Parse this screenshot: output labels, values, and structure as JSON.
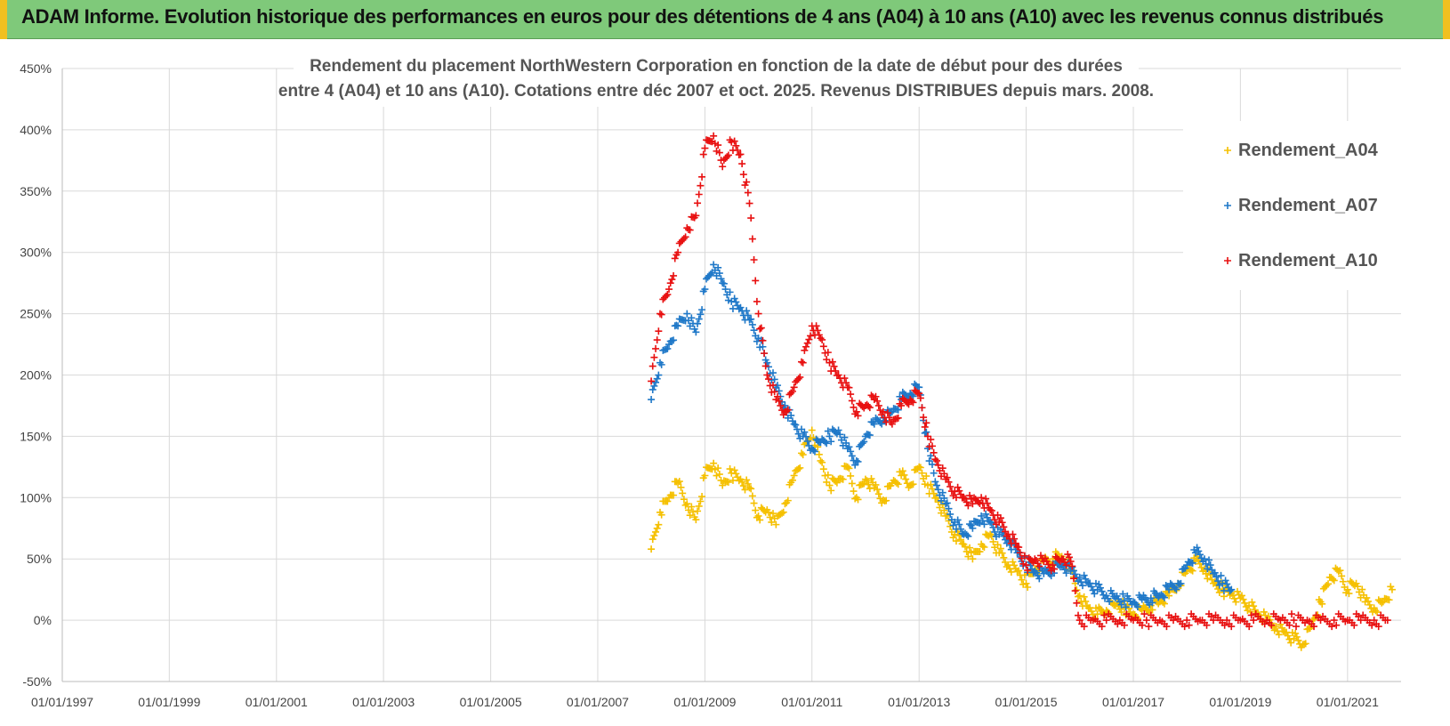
{
  "header": {
    "title": "ADAM Informe. Evolution historique des performances en euros pour des détentions de 4 ans (A04) à 10 ans (A10) avec les revenus connus distribués"
  },
  "colors": {
    "A04": "#f5c000",
    "A07": "#1f78c8",
    "A10": "#e81010",
    "banner": "#7fc97a",
    "grid": "#d9d9d9"
  },
  "chart_data": {
    "type": "scatter",
    "title_lines": [
      "Rendement du placement NorthWestern Corporation en fonction de la date de début pour des durées",
      "entre 4 (A04) et 10 ans (A10). Cotations entre déc 2007 et oct. 2025. Revenus DISTRIBUES depuis mars. 2008."
    ],
    "xlabel": "",
    "ylabel": "",
    "xlim": [
      "1997-01-01",
      "2022-01-01"
    ],
    "ylim": [
      -50,
      450
    ],
    "y_ticks": [
      "-50%",
      "0%",
      "50%",
      "100%",
      "150%",
      "200%",
      "250%",
      "300%",
      "350%",
      "400%",
      "450%"
    ],
    "x_ticks": [
      "01/01/1997",
      "01/01/1999",
      "01/01/2001",
      "01/01/2003",
      "01/01/2005",
      "01/01/2007",
      "01/01/2009",
      "01/01/2011",
      "01/01/2013",
      "01/01/2015",
      "01/01/2017",
      "01/01/2019",
      "01/01/2021"
    ],
    "grid": true,
    "legend_position": "top-right",
    "series": [
      {
        "name": "Rendement_A04",
        "marker": "+",
        "x": [
          "2008-01-01",
          "2008-03-01",
          "2008-05-01",
          "2008-07-01",
          "2008-09-01",
          "2008-11-01",
          "2009-01-01",
          "2009-03-01",
          "2009-05-01",
          "2009-07-01",
          "2009-09-01",
          "2009-11-01",
          "2010-01-01",
          "2010-03-01",
          "2010-05-01",
          "2010-07-01",
          "2010-09-01",
          "2010-11-01",
          "2011-01-01",
          "2011-03-01",
          "2011-05-01",
          "2011-07-01",
          "2011-09-01",
          "2011-11-01",
          "2012-01-01",
          "2012-03-01",
          "2012-05-01",
          "2012-07-01",
          "2012-09-01",
          "2012-11-01",
          "2013-01-01",
          "2013-03-01",
          "2013-05-01",
          "2013-07-01",
          "2013-09-01",
          "2013-11-01",
          "2014-01-01",
          "2014-03-01",
          "2014-05-01",
          "2014-07-01",
          "2014-09-01",
          "2014-11-01",
          "2015-01-01",
          "2015-03-01",
          "2015-05-01",
          "2015-07-01",
          "2015-09-01",
          "2015-11-01",
          "2016-01-01",
          "2016-03-01",
          "2016-05-01",
          "2016-07-01",
          "2016-09-01",
          "2016-11-01",
          "2017-01-01",
          "2017-03-01",
          "2017-05-01",
          "2017-07-01",
          "2017-09-01",
          "2017-11-01",
          "2018-01-01",
          "2018-03-01",
          "2018-05-01",
          "2018-07-01",
          "2018-09-01",
          "2018-11-01",
          "2019-01-01",
          "2019-03-01",
          "2019-05-01",
          "2019-07-01",
          "2019-09-01",
          "2019-11-01",
          "2020-01-01",
          "2020-03-01",
          "2020-05-01",
          "2020-07-01",
          "2020-09-01",
          "2020-11-01",
          "2021-01-01",
          "2021-03-01",
          "2021-05-01",
          "2021-07-01",
          "2021-09-01",
          "2021-11-01"
        ],
        "y": [
          58,
          88,
          100,
          112,
          95,
          82,
          118,
          128,
          110,
          120,
          115,
          108,
          85,
          90,
          78,
          95,
          118,
          135,
          155,
          130,
          110,
          115,
          125,
          100,
          115,
          108,
          98,
          112,
          118,
          110,
          125,
          110,
          100,
          85,
          70,
          62,
          50,
          62,
          70,
          55,
          45,
          40,
          30,
          42,
          48,
          50,
          52,
          40,
          20,
          10,
          5,
          8,
          12,
          10,
          5,
          8,
          12,
          15,
          20,
          30,
          40,
          48,
          42,
          30,
          25,
          22,
          18,
          12,
          5,
          0,
          -5,
          -10,
          -15,
          -20,
          -5,
          15,
          35,
          40,
          25,
          30,
          15,
          10,
          15,
          25
        ]
      },
      {
        "name": "Rendement_A07",
        "marker": "+",
        "x": [
          "2008-01-01",
          "2008-03-01",
          "2008-05-01",
          "2008-07-01",
          "2008-09-01",
          "2008-11-01",
          "2009-01-01",
          "2009-03-01",
          "2009-05-01",
          "2009-07-01",
          "2009-09-01",
          "2009-11-01",
          "2010-01-01",
          "2010-03-01",
          "2010-05-01",
          "2010-07-01",
          "2010-09-01",
          "2010-11-01",
          "2011-01-01",
          "2011-03-01",
          "2011-05-01",
          "2011-07-01",
          "2011-09-01",
          "2011-11-01",
          "2012-01-01",
          "2012-03-01",
          "2012-05-01",
          "2012-07-01",
          "2012-09-01",
          "2012-11-01",
          "2013-01-01",
          "2013-03-01",
          "2013-05-01",
          "2013-07-01",
          "2013-09-01",
          "2013-11-01",
          "2014-01-01",
          "2014-03-01",
          "2014-05-01",
          "2014-07-01",
          "2014-09-01",
          "2014-11-01",
          "2015-01-01",
          "2015-03-01",
          "2015-05-01",
          "2015-07-01",
          "2015-09-01",
          "2015-11-01",
          "2016-01-01",
          "2016-03-01",
          "2016-05-01",
          "2016-07-01",
          "2016-09-01",
          "2016-11-01",
          "2017-01-01",
          "2017-03-01",
          "2017-05-01",
          "2017-07-01",
          "2017-09-01",
          "2017-11-01",
          "2018-01-01",
          "2018-03-01",
          "2018-05-01",
          "2018-07-01",
          "2018-09-01",
          "2018-11-01"
        ],
        "y": [
          180,
          210,
          225,
          240,
          250,
          235,
          270,
          290,
          275,
          260,
          255,
          245,
          230,
          210,
          190,
          175,
          160,
          150,
          140,
          145,
          150,
          155,
          140,
          130,
          150,
          160,
          165,
          170,
          180,
          185,
          190,
          140,
          110,
          95,
          80,
          70,
          75,
          85,
          80,
          70,
          65,
          55,
          45,
          40,
          38,
          42,
          45,
          40,
          35,
          30,
          25,
          20,
          18,
          16,
          15,
          17,
          18,
          20,
          25,
          30,
          45,
          55,
          50,
          38,
          30,
          25
        ]
      },
      {
        "name": "Rendement_A10",
        "marker": "+",
        "x": [
          "2008-01-01",
          "2008-03-01",
          "2008-05-01",
          "2008-07-01",
          "2008-09-01",
          "2008-11-01",
          "2009-01-01",
          "2009-03-01",
          "2009-05-01",
          "2009-07-01",
          "2009-09-01",
          "2009-11-01",
          "2010-01-01",
          "2010-03-01",
          "2010-05-01",
          "2010-07-01",
          "2010-09-01",
          "2010-11-01",
          "2011-01-01",
          "2011-03-01",
          "2011-05-01",
          "2011-07-01",
          "2011-09-01",
          "2011-11-01",
          "2012-01-01",
          "2012-03-01",
          "2012-05-01",
          "2012-07-01",
          "2012-09-01",
          "2012-11-01",
          "2013-01-01",
          "2013-03-01",
          "2013-05-01",
          "2013-07-01",
          "2013-09-01",
          "2013-11-01",
          "2014-01-01",
          "2014-03-01",
          "2014-05-01",
          "2014-07-01",
          "2014-09-01",
          "2014-11-01",
          "2015-01-01",
          "2015-03-01",
          "2015-05-01",
          "2015-07-01",
          "2015-09-01",
          "2015-11-01",
          "2016-01-01",
          "2016-04-01",
          "2016-07-01",
          "2016-10-01",
          "2017-01-01",
          "2017-04-01",
          "2017-07-01",
          "2017-10-01",
          "2018-01-01",
          "2018-04-01",
          "2018-07-01",
          "2018-10-01",
          "2019-01-01",
          "2019-04-01",
          "2019-07-01",
          "2019-10-01",
          "2020-01-01",
          "2020-04-01",
          "2020-07-01",
          "2020-10-01",
          "2021-01-01",
          "2021-04-01",
          "2021-07-01",
          "2021-10-01"
        ],
        "y": [
          195,
          250,
          270,
          300,
          320,
          330,
          385,
          395,
          370,
          390,
          380,
          340,
          250,
          200,
          180,
          170,
          190,
          210,
          240,
          230,
          210,
          200,
          190,
          170,
          175,
          180,
          170,
          160,
          175,
          180,
          185,
          150,
          130,
          115,
          105,
          100,
          95,
          100,
          90,
          80,
          70,
          60,
          45,
          50,
          48,
          45,
          50,
          48,
          0,
          0,
          0,
          0,
          0,
          0,
          0,
          0,
          0,
          0,
          0,
          0,
          0,
          0,
          0,
          0,
          0,
          0,
          0,
          0,
          0,
          0,
          0,
          0
        ]
      }
    ]
  }
}
